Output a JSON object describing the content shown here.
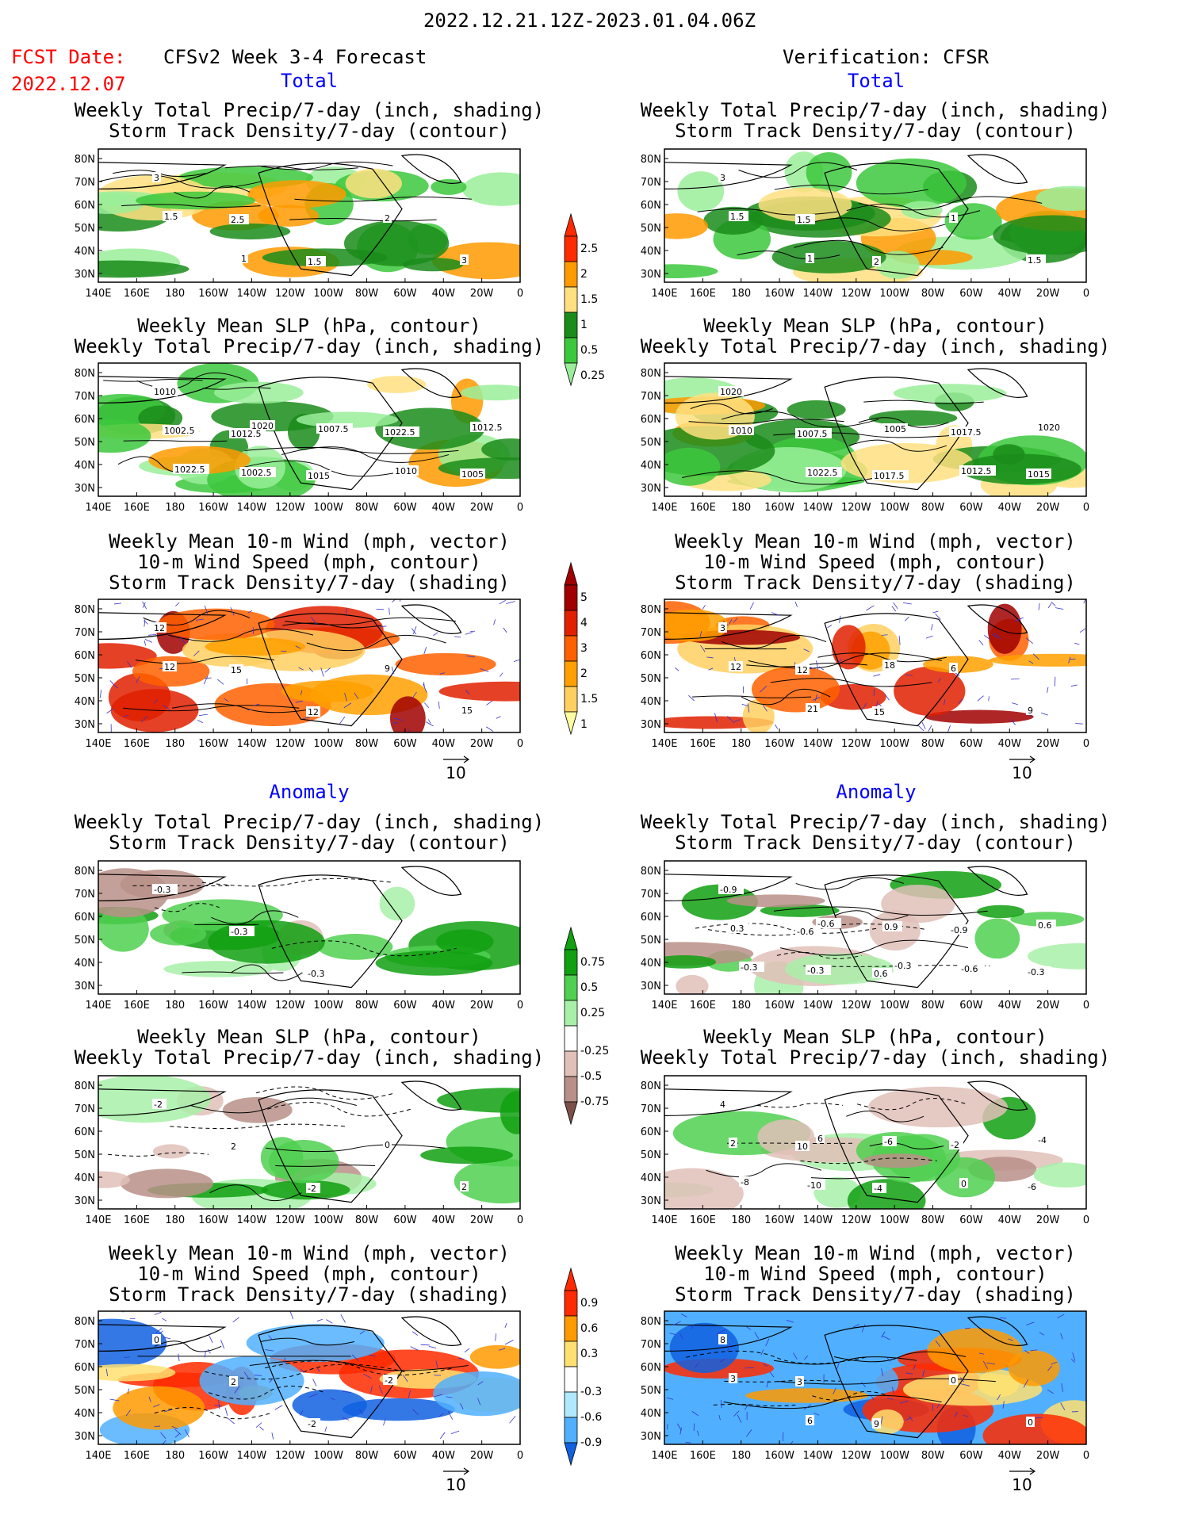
{
  "header": {
    "date_range": "2022.12.21.12Z-2023.01.04.06Z",
    "fcst_label": "FCST Date:",
    "fcst_date": "2022.12.07",
    "left_title": "CFSv2 Week 3-4 Forecast",
    "right_title": "Verification: CFSR"
  },
  "sections": {
    "total": "Total",
    "anomaly": "Anomaly"
  },
  "panel_titles": {
    "precip_storm": [
      "Weekly Total Precip/7-day (inch, shading)",
      "Storm Track Density/7-day (contour)"
    ],
    "slp_precip": [
      "Weekly Mean SLP (hPa, contour)",
      "Weekly Total Precip/7-day (inch, shading)"
    ],
    "wind_storm": [
      "Weekly Mean 10-m Wind (mph, vector)",
      "10-m Wind Speed (mph, contour)",
      "Storm Track Density/7-day (shading)"
    ]
  },
  "axes": {
    "lon_labels": [
      "140E",
      "160E",
      "180",
      "160W",
      "140W",
      "120W",
      "100W",
      "80W",
      "60W",
      "40W",
      "20W",
      "0"
    ],
    "lat_labels": [
      "80N",
      "70N",
      "60N",
      "50N",
      "40N",
      "30N"
    ]
  },
  "vector_ref": "10",
  "colorbars": {
    "precip_total": {
      "labels": [
        "2.5",
        "2",
        "1.5",
        "1",
        "0.5",
        "0.25"
      ],
      "colors": [
        "#ff2a00",
        "#ff9a00",
        "#ffe080",
        "#1a8c1a",
        "#3cc83c",
        "#9aee9a"
      ]
    },
    "storm_total": {
      "labels": [
        "5",
        "4",
        "3",
        "2",
        "1.5",
        "1"
      ],
      "colors": [
        "#a00000",
        "#e02000",
        "#ff6000",
        "#ffa000",
        "#ffd060",
        "#ffffa0"
      ]
    },
    "precip_anom": {
      "labels": [
        "0.75",
        "0.5",
        "0.25",
        "-0.25",
        "-0.5",
        "-0.75"
      ],
      "colors": [
        "#10a010",
        "#50d050",
        "#a8f0a8",
        "#ffffff",
        "#e0c0b8",
        "#b89088",
        "#7a5048"
      ]
    },
    "storm_anom": {
      "labels": [
        "0.9",
        "0.6",
        "0.3",
        "-0.3",
        "-0.6",
        "-0.9"
      ],
      "colors": [
        "#ff2a00",
        "#ff9a00",
        "#ffe070",
        "#ffffff",
        "#b0e8ff",
        "#50b0ff",
        "#1060e0"
      ]
    }
  },
  "panel_labels": {
    "f1": [
      "3",
      "2.5",
      "1.5",
      "2",
      "3",
      "1.5",
      "1"
    ],
    "v1": [
      "3",
      "1.5",
      "2",
      "1",
      "1.5",
      "1.5",
      "1"
    ],
    "f2": [
      "1010",
      "1012.5",
      "1015",
      "1022.5",
      "1005",
      "1002.5",
      "1002.5",
      "1007.5",
      "1010",
      "1012.5",
      "1022.5",
      "1020"
    ],
    "v2": [
      "1020",
      "1007.5",
      "1017.5",
      "1017.5",
      "1015",
      "1010",
      "1022.5",
      "1005",
      "1012.5",
      "1020"
    ],
    "f3": [
      "12",
      "15",
      "12",
      "9",
      "15",
      "12"
    ],
    "v3": [
      "3",
      "12",
      "15",
      "6",
      "9",
      "12",
      "21",
      "18"
    ],
    "f4": [
      "-0.3",
      "-0.3",
      "-0.3"
    ],
    "v4": [
      "-0.9",
      "-0.6",
      "0.6",
      "-0.9",
      "-0.3",
      "0.3",
      "-0.3",
      "0.9",
      "-0.6",
      "0.6",
      "-0.3",
      "-0.6",
      "-0.3"
    ],
    "f5": [
      "-2",
      "2",
      "-2",
      "0",
      "2"
    ],
    "v5": [
      "4",
      "10",
      "-4",
      "-2",
      "-6",
      "2",
      "-10",
      "-6",
      "0",
      "-4",
      "-8",
      "6"
    ],
    "f6": [
      "0",
      "2",
      "-2",
      "-2"
    ],
    "v6": [
      "8",
      "3",
      "9",
      "0",
      "0",
      "3",
      "6"
    ]
  }
}
